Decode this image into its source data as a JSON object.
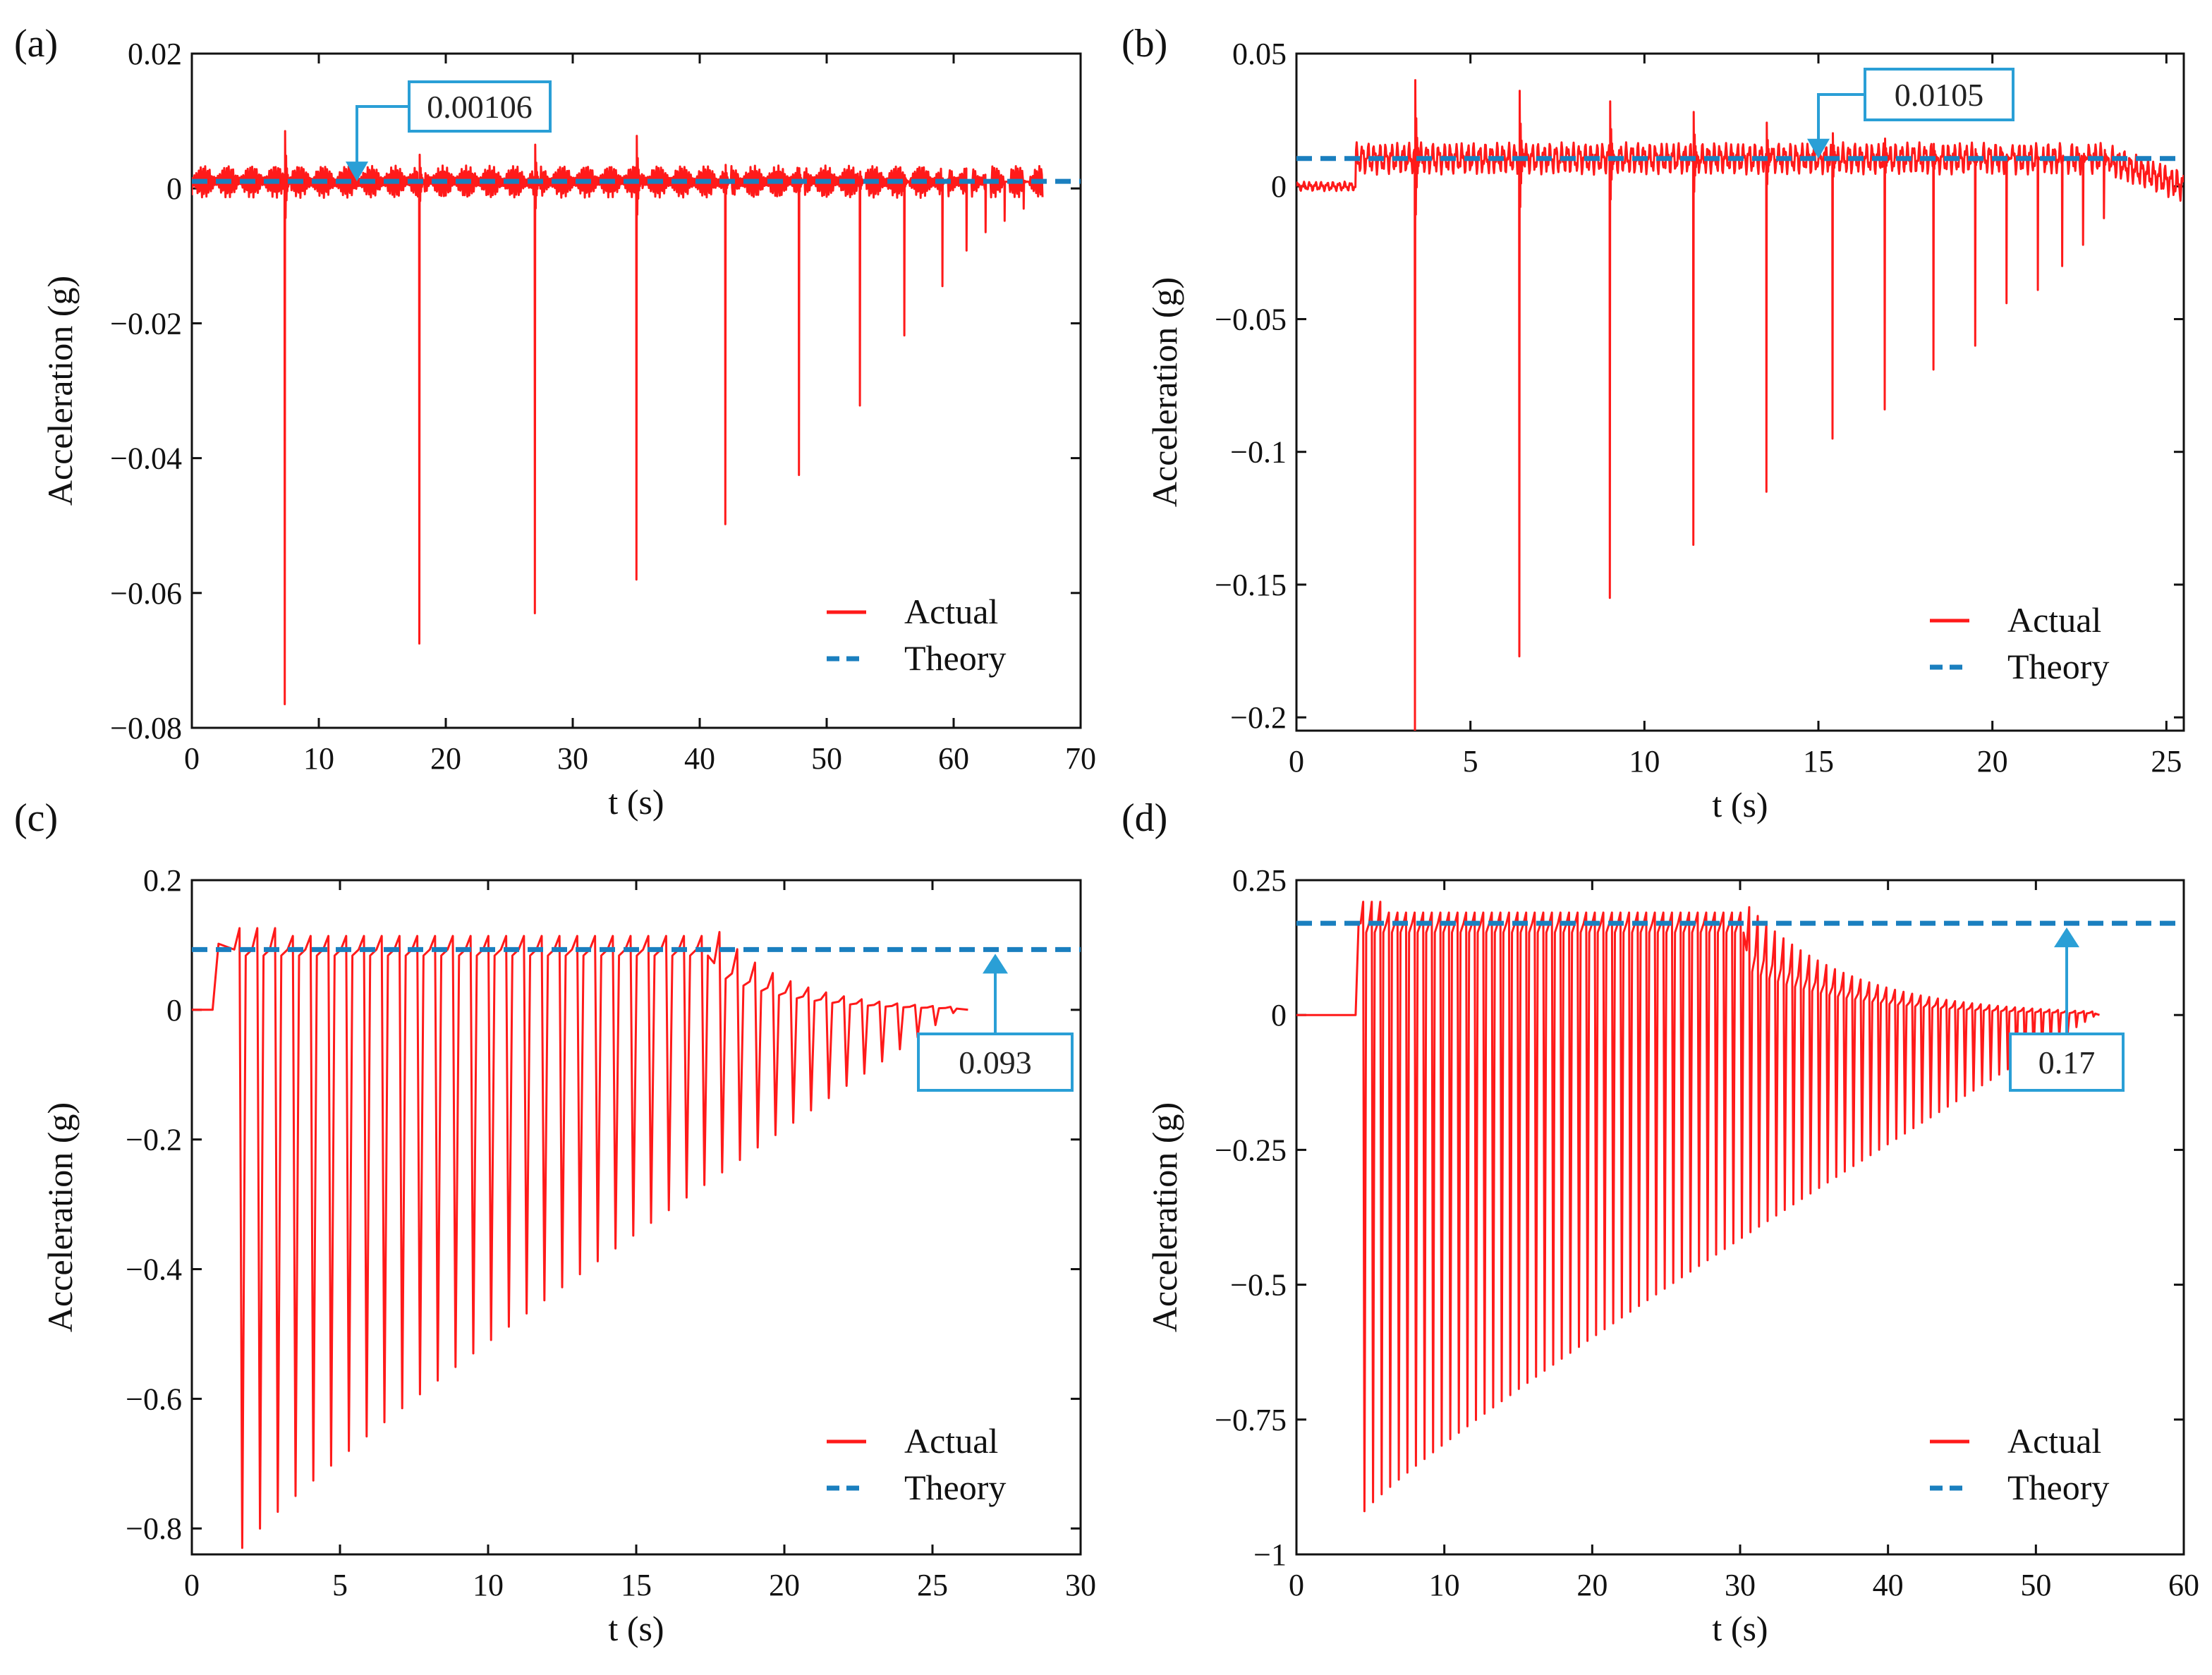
{
  "figure": {
    "colors": {
      "actual": "#ff1a1a",
      "theory": "#1a7fbf",
      "callout": "#2a9fd6",
      "axis": "#111111"
    }
  },
  "chart_data": [
    {
      "type": "line",
      "panel_label": "(a)",
      "xlabel": "t (s)",
      "ylabel": "Acceleration (g)",
      "xlim": [
        0,
        70
      ],
      "ylim": [
        -0.08,
        0.02
      ],
      "x_ticks": [
        0,
        10,
        20,
        30,
        40,
        50,
        60,
        70
      ],
      "y_ticks": [
        -0.08,
        -0.06,
        -0.04,
        -0.02,
        0,
        0.02
      ],
      "x_tick_labels": [
        "0",
        "10",
        "20",
        "30",
        "40",
        "50",
        "60",
        "70"
      ],
      "y_tick_labels": [
        "−0.08",
        "−0.06",
        "−0.04",
        "−0.02",
        "0",
        "0.02"
      ],
      "legend": {
        "position": "bottom-right",
        "entries": [
          "Actual",
          "Theory"
        ]
      },
      "theory_value": 0.00106,
      "callout": {
        "text": "0.00106",
        "points_to": [
          13,
          0.00106
        ]
      },
      "series": [
        {
          "name": "Actual",
          "style": "solid",
          "baseline": 0.001,
          "start": [
            0,
            -0.001
          ],
          "end": 67,
          "spikes": [
            {
              "t": 7.3,
              "min": -0.0765,
              "max": 0.0085
            },
            {
              "t": 17.9,
              "min": -0.0675,
              "max": 0.005
            },
            {
              "t": 27.0,
              "min": -0.063,
              "max": 0.0065
            },
            {
              "t": 35.0,
              "min": -0.058,
              "max": 0.0078
            },
            {
              "t": 42.0,
              "min": -0.0498,
              "max": 0.0035
            },
            {
              "t": 47.8,
              "min": -0.0425,
              "max": 0.003
            },
            {
              "t": 52.6,
              "min": -0.0322,
              "max": 0.0025
            },
            {
              "t": 56.1,
              "min": -0.0218,
              "max": 0.002
            },
            {
              "t": 59.1,
              "min": -0.0145,
              "max": 0.0015
            },
            {
              "t": 61.0,
              "min": -0.0092,
              "max": 0.0012
            },
            {
              "t": 62.5,
              "min": -0.0065,
              "max": 0.001
            },
            {
              "t": 64.0,
              "min": -0.0048,
              "max": 0.001
            },
            {
              "t": 65.5,
              "min": -0.003,
              "max": 0.0008
            }
          ]
        },
        {
          "name": "Theory",
          "style": "dashed",
          "x": [
            0,
            70
          ],
          "y": [
            0.00106,
            0.00106
          ]
        }
      ]
    },
    {
      "type": "line",
      "panel_label": "(b)",
      "xlabel": "t (s)",
      "ylabel": "Acceleration (g)",
      "xlim": [
        0,
        25.5
      ],
      "ylim": [
        -0.205,
        0.05
      ],
      "x_ticks": [
        0,
        5,
        10,
        15,
        20,
        25
      ],
      "y_ticks": [
        -0.2,
        -0.15,
        -0.1,
        -0.05,
        0,
        0.05
      ],
      "x_tick_labels": [
        "0",
        "5",
        "10",
        "15",
        "20",
        "25"
      ],
      "y_tick_labels": [
        "−0.2",
        "−0.15",
        "−0.1",
        "−0.05",
        "0",
        "0.05"
      ],
      "legend": {
        "position": "bottom-right",
        "entries": [
          "Actual",
          "Theory"
        ]
      },
      "theory_value": 0.0105,
      "callout": {
        "text": "0.0105",
        "points_to": [
          15,
          0.0105
        ]
      },
      "series": [
        {
          "name": "Actual",
          "style": "solid",
          "baseline": 0.0105,
          "start": [
            0,
            0.0
          ],
          "step_at": 1.7,
          "end": 25.5,
          "spikes": [
            {
              "t": 3.4,
              "min": -0.205,
              "max": 0.04
            },
            {
              "t": 6.4,
              "min": -0.177,
              "max": 0.036
            },
            {
              "t": 9.0,
              "min": -0.155,
              "max": 0.032
            },
            {
              "t": 11.4,
              "min": -0.135,
              "max": 0.028
            },
            {
              "t": 13.5,
              "min": -0.115,
              "max": 0.024
            },
            {
              "t": 15.4,
              "min": -0.095,
              "max": 0.02
            },
            {
              "t": 16.9,
              "min": -0.084,
              "max": 0.018
            },
            {
              "t": 18.3,
              "min": -0.069,
              "max": 0.016
            },
            {
              "t": 19.5,
              "min": -0.06,
              "max": 0.014
            },
            {
              "t": 20.4,
              "min": -0.044,
              "max": 0.012
            },
            {
              "t": 21.3,
              "min": -0.039,
              "max": 0.011
            },
            {
              "t": 22.0,
              "min": -0.03,
              "max": 0.009
            },
            {
              "t": 22.6,
              "min": -0.022,
              "max": 0.008
            },
            {
              "t": 23.2,
              "min": -0.012,
              "max": 0.006
            }
          ]
        },
        {
          "name": "Theory",
          "style": "dashed",
          "x": [
            0,
            25.5
          ],
          "y": [
            0.0105,
            0.0105
          ]
        }
      ]
    },
    {
      "type": "line",
      "panel_label": "(c)",
      "xlabel": "t (s)",
      "ylabel": "Acceleration (g)",
      "xlim": [
        0,
        30
      ],
      "ylim": [
        -0.84,
        0.2
      ],
      "x_ticks": [
        0,
        5,
        10,
        15,
        20,
        25,
        30
      ],
      "y_ticks": [
        -0.8,
        -0.6,
        -0.4,
        -0.2,
        0,
        0.2
      ],
      "x_tick_labels": [
        "0",
        "5",
        "10",
        "15",
        "20",
        "25",
        "30"
      ],
      "y_tick_labels": [
        "−0.8",
        "−0.6",
        "−0.4",
        "−0.2",
        "0",
        "0.2"
      ],
      "legend": {
        "position": "bottom-right",
        "entries": [
          "Actual",
          "Theory"
        ]
      },
      "theory_value": 0.093,
      "callout": {
        "text": "0.093",
        "points_to": [
          27,
          0.093
        ]
      },
      "series": [
        {
          "name": "Actual",
          "style": "solid",
          "oscillation": {
            "start": 0.7,
            "first_min_t": 1.7,
            "period": 0.6,
            "count": 41,
            "first_min": -0.83,
            "last_min": -0.005,
            "peak": 0.12,
            "flat_until_n": 27,
            "end": 26.2
          }
        },
        {
          "name": "Theory",
          "style": "dashed",
          "x": [
            0,
            30
          ],
          "y": [
            0.093,
            0.093
          ]
        }
      ]
    },
    {
      "type": "line",
      "panel_label": "(d)",
      "xlabel": "t (s)",
      "ylabel": "Acceleration (g)",
      "xlim": [
        0,
        60
      ],
      "ylim": [
        -1,
        0.25
      ],
      "x_ticks": [
        0,
        10,
        20,
        30,
        40,
        50,
        60
      ],
      "y_ticks": [
        -1,
        -0.75,
        -0.5,
        -0.25,
        0,
        0.25
      ],
      "x_tick_labels": [
        "0",
        "10",
        "20",
        "30",
        "40",
        "50",
        "60"
      ],
      "y_tick_labels": [
        "−1",
        "−0.75",
        "−0.5",
        "−0.25",
        "0",
        "0.25"
      ],
      "legend": {
        "position": "bottom-right",
        "entries": [
          "Actual",
          "Theory"
        ]
      },
      "theory_value": 0.17,
      "callout": {
        "text": "0.17",
        "points_to": [
          55,
          0.17
        ]
      },
      "series": [
        {
          "name": "Actual",
          "style": "solid",
          "oscillation": {
            "start": 4.0,
            "first_min_t": 4.6,
            "period": 0.58,
            "count": 86,
            "first_min": -0.92,
            "last_min": -0.003,
            "peak": 0.2,
            "flat_until_n": 45,
            "end": 54.3
          }
        },
        {
          "name": "Theory",
          "style": "dashed",
          "x": [
            0,
            60
          ],
          "y": [
            0.17,
            0.17
          ]
        }
      ]
    }
  ]
}
